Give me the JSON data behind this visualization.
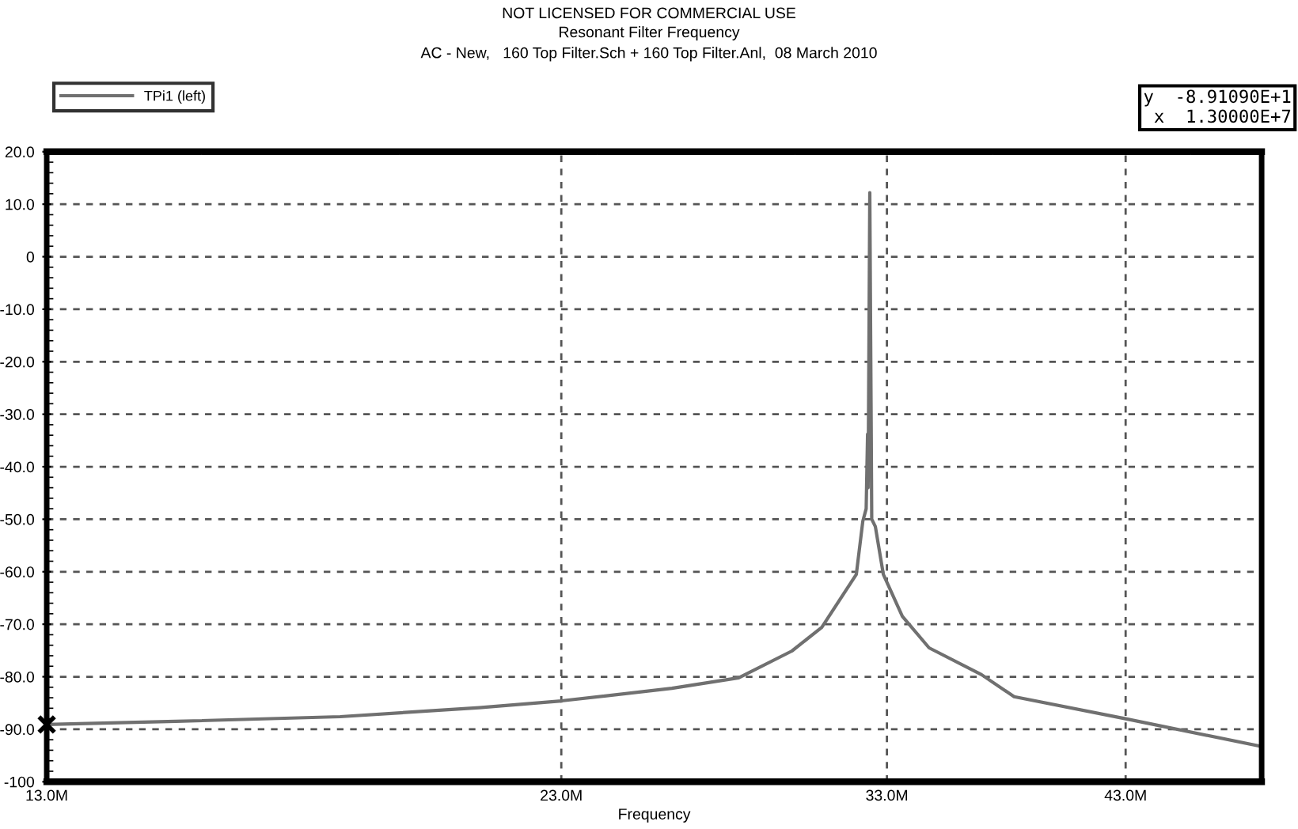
{
  "chart_data": {
    "type": "line",
    "title": "Resonant Filter Frequency",
    "subtitle": "AC - New,   160 Top Filter.Sch + 160 Top Filter.Anl,  08 March 2010",
    "xlabel": "Frequency",
    "annotations": [
      "NOT LICENSED FOR COMMERCIAL USE",
      "y  -8.91090E+1\nx  1.30000E+7"
    ],
    "log": "x",
    "grid": true,
    "legend": "top left",
    "marker": "none",
    "line_style": "solid",
    "xlim": [
      13000000,
      50000000
    ],
    "xticks": [
      {
        "value": 13000000,
        "label": "13.0M"
      },
      {
        "value": 23000000,
        "label": "23.0M"
      },
      {
        "value": 33000000,
        "label": "33.0M"
      },
      {
        "value": 43000000,
        "label": "43.0M"
      }
    ],
    "ylim": [
      -100,
      20
    ],
    "yticks": [
      {
        "value": -100,
        "label": "-100"
      },
      {
        "value": -90,
        "label": "-90.0"
      },
      {
        "value": -80,
        "label": "-80.0"
      },
      {
        "value": -70,
        "label": "-70.0"
      },
      {
        "value": -60,
        "label": "-60.0"
      },
      {
        "value": -50,
        "label": "-50.0"
      },
      {
        "value": -40,
        "label": "-40.0"
      },
      {
        "value": -30,
        "label": "-30.0"
      },
      {
        "value": -20,
        "label": "-20.0"
      },
      {
        "value": -10,
        "label": "-10.0"
      },
      {
        "value": 0,
        "label": "0"
      },
      {
        "value": 10,
        "label": "10.0"
      },
      {
        "value": 20,
        "label": "20.0"
      }
    ],
    "series": [
      {
        "name": "TPi1 (left)",
        "color": "#707070",
        "x": [
          13000000,
          15000000,
          18000000,
          21000000,
          23000000,
          26000000,
          28000000,
          29700000,
          30700000,
          31900000,
          32130000,
          32250000,
          32300000,
          32320000,
          32380000,
          32450000,
          32580000,
          32870000,
          33570000,
          34580000,
          36650000,
          38000000,
          43000000,
          50000000
        ],
        "values": [
          -89.1,
          -88.5,
          -87.6,
          -85.9,
          -84.6,
          -82.2,
          -80.2,
          -75.1,
          -70.6,
          -60.5,
          -50.4,
          -48.0,
          -33.8,
          -44.0,
          12.2,
          -50.0,
          -51.4,
          -60.5,
          -68.5,
          -74.5,
          -79.6,
          -83.8,
          -88.0,
          -93.3
        ]
      }
    ]
  }
}
